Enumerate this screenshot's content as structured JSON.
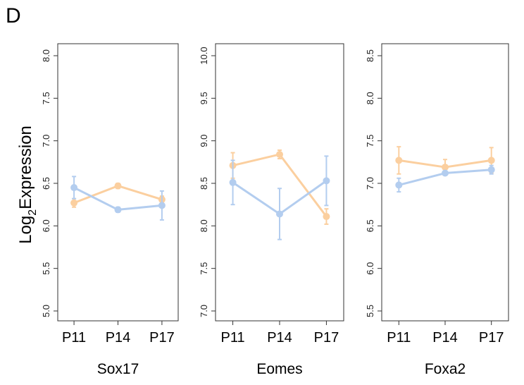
{
  "panel_label": "D",
  "ylabel_base": "Log",
  "ylabel_sub": "2",
  "ylabel_rest": "Expression",
  "colors": {
    "blue": "#b3cdef",
    "orange": "#fbcf9f",
    "frame": "#333333"
  },
  "chart_data": [
    {
      "type": "line",
      "title": "Sox17",
      "categories": [
        "P11",
        "P14",
        "P17"
      ],
      "ylim": [
        5.0,
        8.0
      ],
      "yticks": [
        "5.0",
        "5.5",
        "6.0",
        "6.5",
        "7.0",
        "7.5",
        "8.0"
      ],
      "series": [
        {
          "color": "orange",
          "values": [
            6.27,
            6.47,
            6.31
          ],
          "err": [
            0.05,
            0.03,
            0.04
          ]
        },
        {
          "color": "blue",
          "values": [
            6.45,
            6.19,
            6.24
          ],
          "err": [
            0.13,
            0.03,
            0.17
          ]
        }
      ]
    },
    {
      "type": "line",
      "title": "Eomes",
      "categories": [
        "P11",
        "P14",
        "P17"
      ],
      "ylim": [
        7.0,
        10.0
      ],
      "yticks": [
        "7.0",
        "7.5",
        "8.0",
        "8.5",
        "9.0",
        "9.5",
        "10.0"
      ],
      "series": [
        {
          "color": "orange",
          "values": [
            8.71,
            8.84,
            8.11
          ],
          "err": [
            0.15,
            0.05,
            0.09
          ]
        },
        {
          "color": "blue",
          "values": [
            8.51,
            8.14,
            8.53
          ],
          "err": [
            0.26,
            0.3,
            0.29
          ]
        }
      ]
    },
    {
      "type": "line",
      "title": "Foxa2",
      "categories": [
        "P11",
        "P14",
        "P17"
      ],
      "ylim": [
        5.5,
        8.5
      ],
      "yticks": [
        "5.5",
        "6.0",
        "6.5",
        "7.0",
        "7.5",
        "8.0",
        "8.5"
      ],
      "series": [
        {
          "color": "orange",
          "values": [
            7.27,
            7.19,
            7.27
          ],
          "err": [
            0.16,
            0.09,
            0.15
          ]
        },
        {
          "color": "blue",
          "values": [
            6.98,
            7.12,
            7.16
          ],
          "err": [
            0.08,
            0.02,
            0.05
          ]
        }
      ]
    }
  ]
}
